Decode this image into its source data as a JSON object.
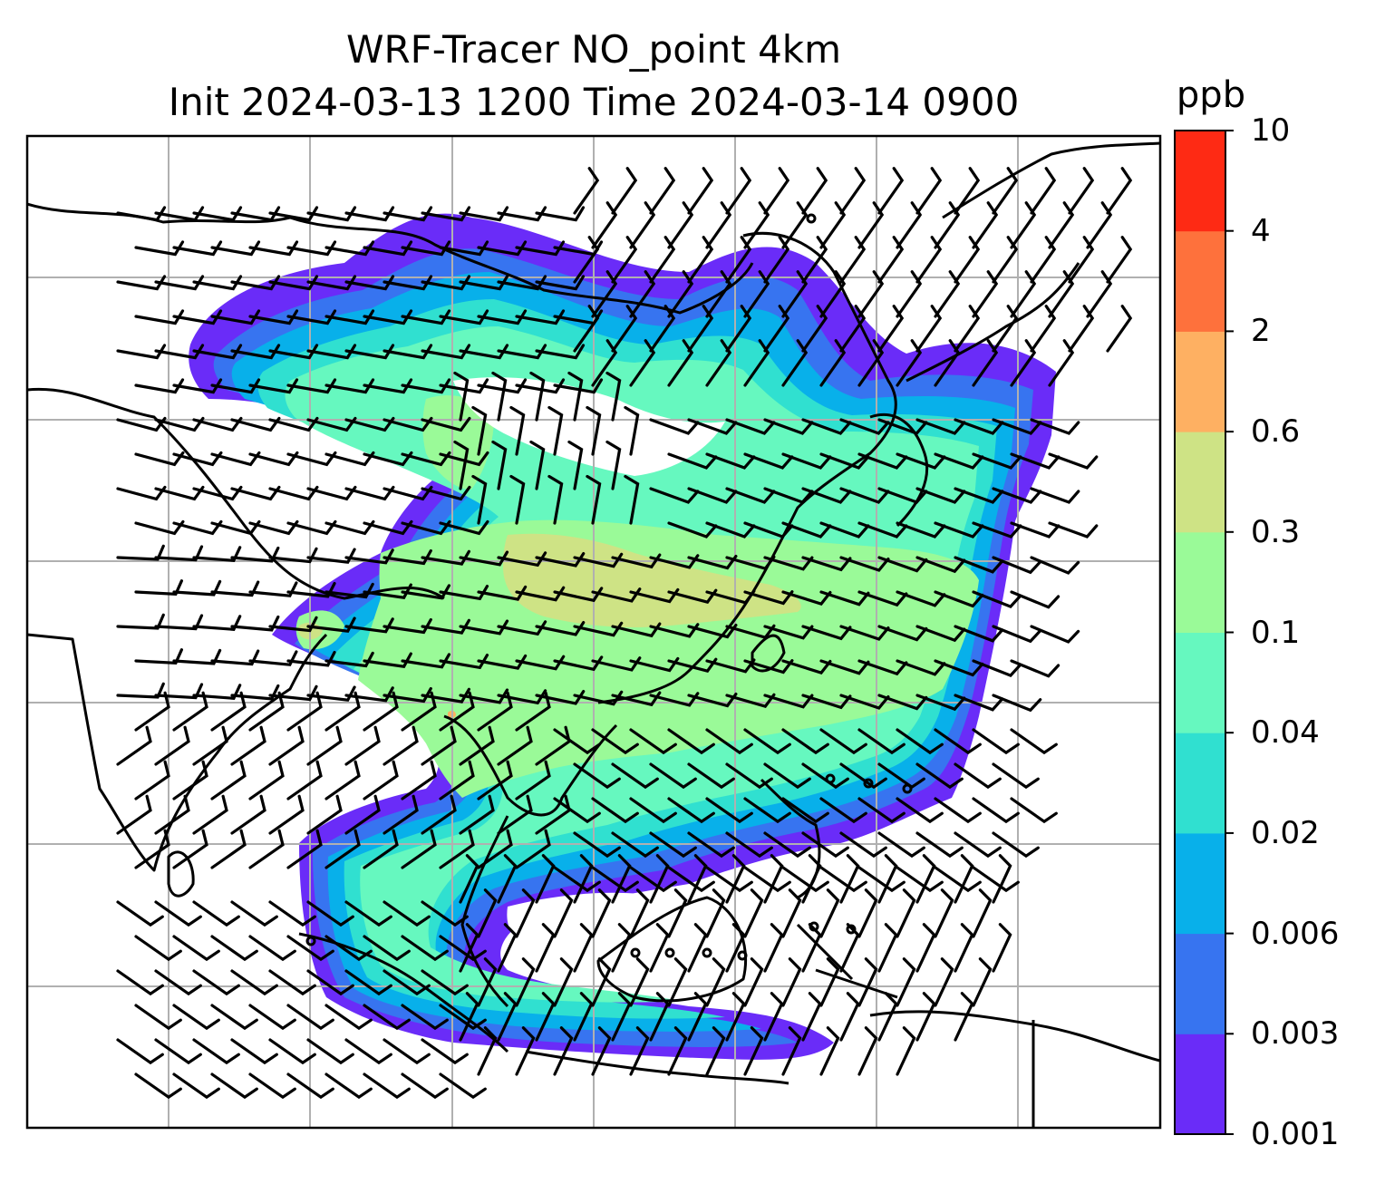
{
  "title": {
    "line1": "WRF-Tracer NO_point 4km",
    "line2": "Init 2024-03-13 1200 Time 2024-03-14 0900"
  },
  "colorbar": {
    "unit": "ppb",
    "levels": [
      {
        "label": "0.001",
        "color": "#6a2cf8"
      },
      {
        "label": "0.003",
        "color": "#3774f0"
      },
      {
        "label": "0.006",
        "color": "#08b0ea"
      },
      {
        "label": "0.02",
        "color": "#30e0d0"
      },
      {
        "label": "0.04",
        "color": "#66f8bf"
      },
      {
        "label": "0.1",
        "color": "#9afa98"
      },
      {
        "label": "0.3",
        "color": "#cee385"
      },
      {
        "label": "0.6",
        "color": "#feb062"
      },
      {
        "label": "2",
        "color": "#fe713c"
      },
      {
        "label": "4",
        "color": "#fe2a14"
      },
      {
        "label": "10",
        "color": null
      }
    ]
  },
  "colors": {
    "coastline": "#000000",
    "grid": "#b0b0b0",
    "barbs": "#000000"
  }
}
